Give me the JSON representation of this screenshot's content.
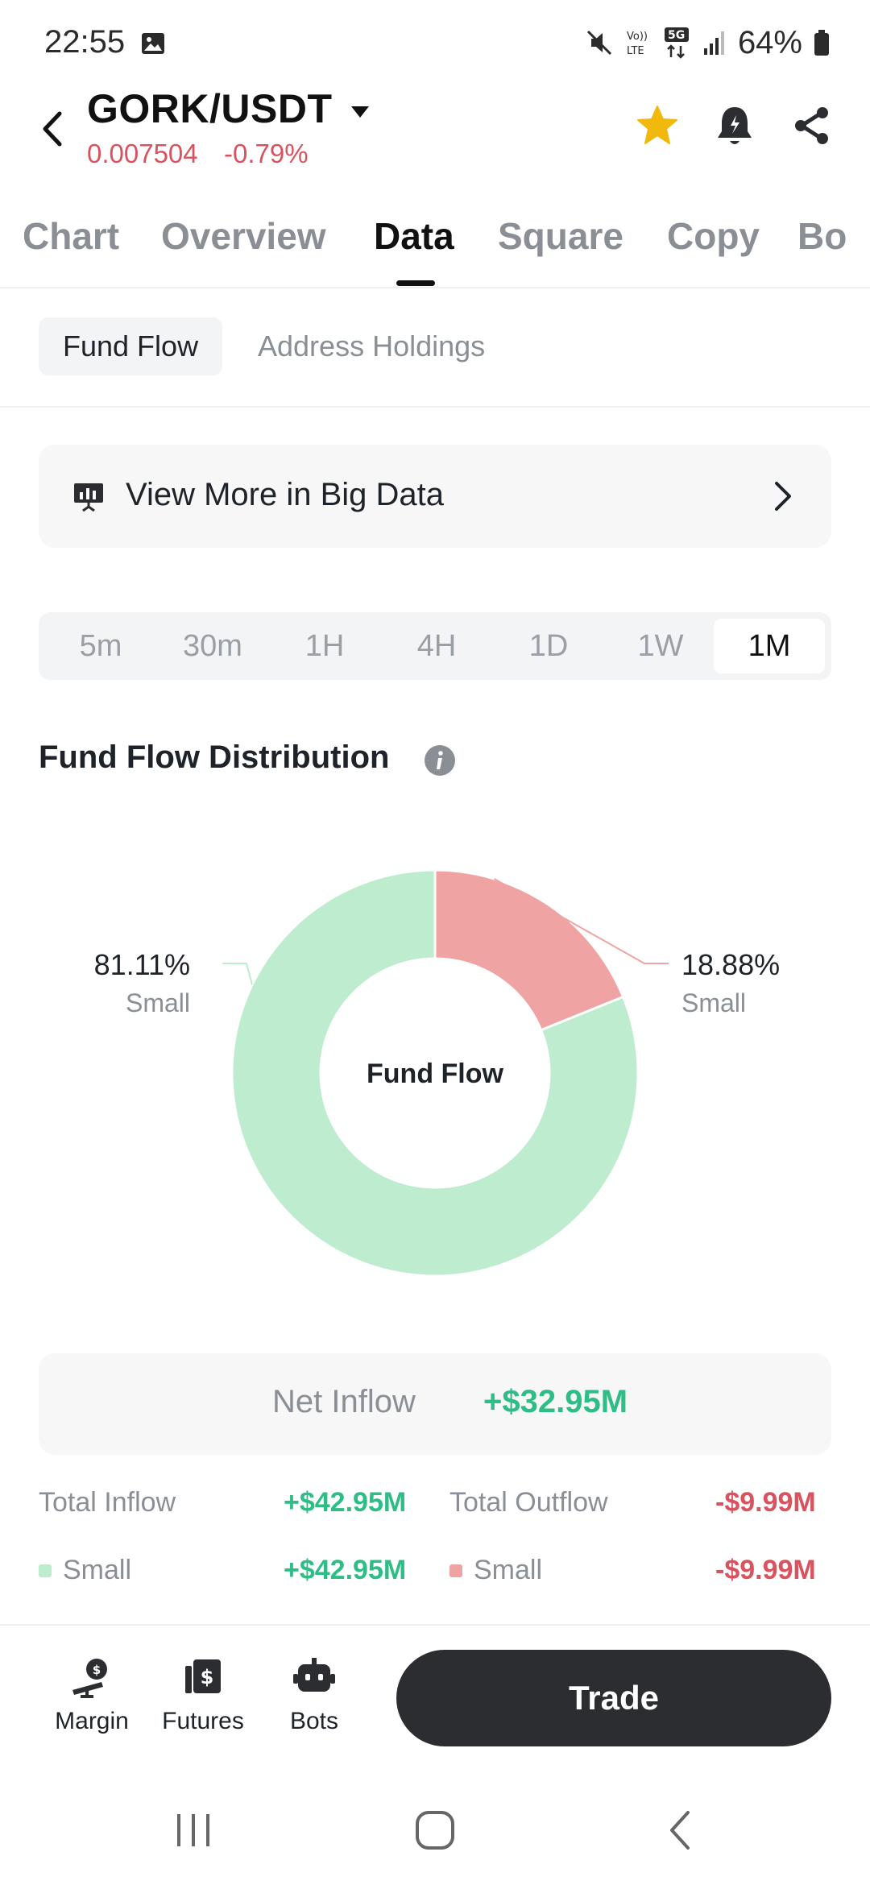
{
  "status_bar": {
    "time": "22:55",
    "battery": "64%"
  },
  "header": {
    "pair": "GORK/USDT",
    "price": "0.007504",
    "change": "-0.79%"
  },
  "tabs": [
    "Chart",
    "Overview",
    "Data",
    "Square",
    "Copy",
    "Bo"
  ],
  "active_tab": "Data",
  "subtabs": [
    "Fund Flow",
    "Address Holdings"
  ],
  "big_data": {
    "label": "View More in Big Data"
  },
  "ranges": [
    "5m",
    "30m",
    "1H",
    "4H",
    "1D",
    "1W",
    "1M"
  ],
  "active_range": "1M",
  "distribution": {
    "title": "Fund Flow Distribution"
  },
  "chart_data": {
    "type": "pie",
    "center_label": "Fund Flow",
    "slices": [
      {
        "label": "Small",
        "value": 18.88,
        "display": "18.88%",
        "color": "#f0a3a3"
      },
      {
        "label": "Small",
        "value": 81.11,
        "display": "81.11%",
        "color": "#bdeccf"
      }
    ]
  },
  "net": {
    "label": "Net Inflow",
    "value": "+$32.95M"
  },
  "flows": {
    "total_inflow_label": "Total Inflow",
    "total_inflow": "+$42.95M",
    "total_outflow_label": "Total Outflow",
    "total_outflow": "-$9.99M",
    "small_in_label": "Small",
    "small_in": "+$42.95M",
    "small_out_label": "Small",
    "small_out": "-$9.99M"
  },
  "bottom_nav": {
    "margin": "Margin",
    "futures": "Futures",
    "bots": "Bots",
    "trade": "Trade"
  },
  "colors": {
    "positive": "#2ebd85",
    "negative": "#d9535f",
    "favorite": "#f0b90b"
  },
  "icons": {
    "back": "chevron-left-icon",
    "favorite": "star-icon",
    "alert": "bell-icon",
    "share": "share-icon",
    "big_data": "presentation-chart-icon",
    "info": "info-icon"
  }
}
